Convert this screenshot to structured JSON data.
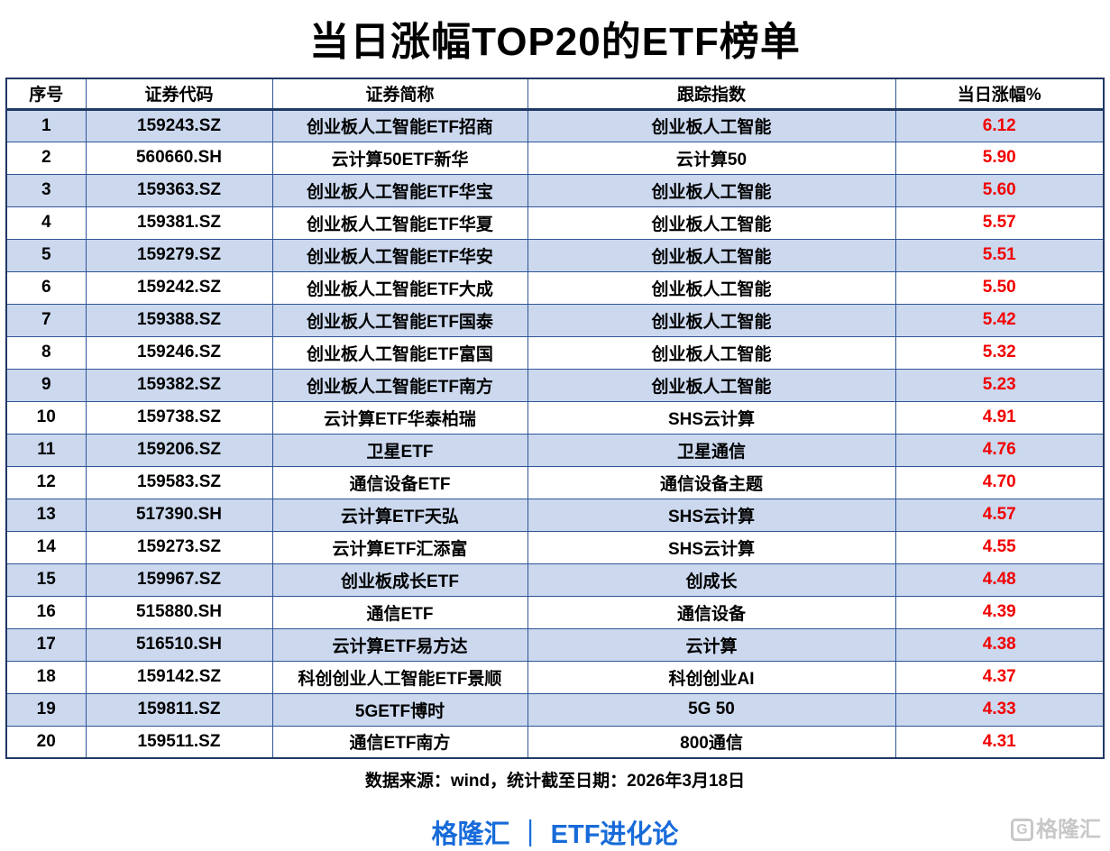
{
  "title": "当日涨幅TOP20的ETF榜单",
  "chart_data": {
    "type": "table",
    "title": "当日涨幅TOP20的ETF榜单",
    "columns": [
      "序号",
      "证券代码",
      "证券简称",
      "跟踪指数",
      "当日涨幅%"
    ],
    "rows": [
      [
        "1",
        "159243.SZ",
        "创业板人工智能ETF招商",
        "创业板人工智能",
        "6.12"
      ],
      [
        "2",
        "560660.SH",
        "云计算50ETF新华",
        "云计算50",
        "5.90"
      ],
      [
        "3",
        "159363.SZ",
        "创业板人工智能ETF华宝",
        "创业板人工智能",
        "5.60"
      ],
      [
        "4",
        "159381.SZ",
        "创业板人工智能ETF华夏",
        "创业板人工智能",
        "5.57"
      ],
      [
        "5",
        "159279.SZ",
        "创业板人工智能ETF华安",
        "创业板人工智能",
        "5.51"
      ],
      [
        "6",
        "159242.SZ",
        "创业板人工智能ETF大成",
        "创业板人工智能",
        "5.50"
      ],
      [
        "7",
        "159388.SZ",
        "创业板人工智能ETF国泰",
        "创业板人工智能",
        "5.42"
      ],
      [
        "8",
        "159246.SZ",
        "创业板人工智能ETF富国",
        "创业板人工智能",
        "5.32"
      ],
      [
        "9",
        "159382.SZ",
        "创业板人工智能ETF南方",
        "创业板人工智能",
        "5.23"
      ],
      [
        "10",
        "159738.SZ",
        "云计算ETF华泰柏瑞",
        "SHS云计算",
        "4.91"
      ],
      [
        "11",
        "159206.SZ",
        "卫星ETF",
        "卫星通信",
        "4.76"
      ],
      [
        "12",
        "159583.SZ",
        "通信设备ETF",
        "通信设备主题",
        "4.70"
      ],
      [
        "13",
        "517390.SH",
        "云计算ETF天弘",
        "SHS云计算",
        "4.57"
      ],
      [
        "14",
        "159273.SZ",
        "云计算ETF汇添富",
        "SHS云计算",
        "4.55"
      ],
      [
        "15",
        "159967.SZ",
        "创业板成长ETF",
        "创成长",
        "4.48"
      ],
      [
        "16",
        "515880.SH",
        "通信ETF",
        "通信设备",
        "4.39"
      ],
      [
        "17",
        "516510.SH",
        "云计算ETF易方达",
        "云计算",
        "4.38"
      ],
      [
        "18",
        "159142.SZ",
        "科创创业人工智能ETF景顺",
        "科创创业AI",
        "4.37"
      ],
      [
        "19",
        "159811.SZ",
        "5GETF博时",
        "5G 50",
        "4.33"
      ],
      [
        "20",
        "159511.SZ",
        "通信ETF南方",
        "800通信",
        "4.31"
      ]
    ]
  },
  "footer": {
    "source": "数据来源：wind，统计截至日期：2026年3月18日",
    "brand": "格隆汇 ｜ ETF进化论",
    "watermark_icon": "G",
    "watermark": "格隆汇"
  },
  "colors": {
    "row_alt": "#cbd8ee",
    "gain_red": "#f20000",
    "brand_blue": "#176bd9",
    "border_blue": "#2f5597",
    "border_dark": "#1f3864",
    "watermark_grey": "#c8c8c8"
  }
}
